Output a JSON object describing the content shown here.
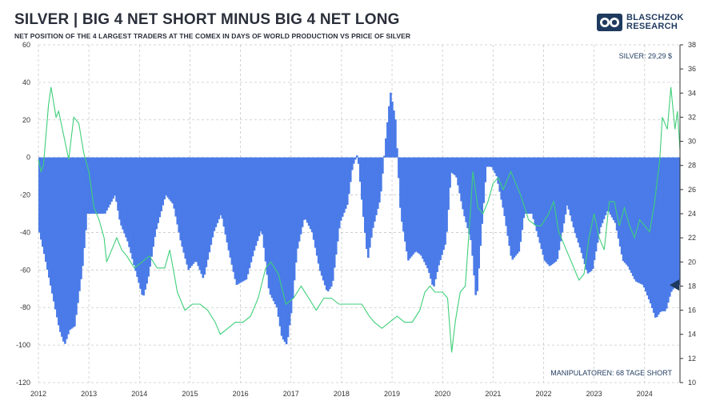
{
  "header": {
    "title": "SILVER | BIG 4 NET SHORT MINUS BIG 4 NET LONG",
    "subtitle": "NET POSITION OF THE 4 LARGEST TRADERS AT THE COMEX IN DAYS OF WORLD PRODUCTION VS PRICE OF SILVER"
  },
  "brand": {
    "line1": "BLASCHZOK",
    "line2": "RESEARCH",
    "icon": "bull-bear-logo-icon"
  },
  "colors": {
    "bars": "#4a7be8",
    "line": "#3fcf7a",
    "grid": "#c8c8c8",
    "marker": "#1f3a5f",
    "text": "#2a2f3a"
  },
  "chart_data": {
    "type": "bar",
    "title": "SILVER | BIG 4 NET SHORT MINUS BIG 4 NET LONG",
    "subtitle": "NET POSITION OF THE 4 LARGEST TRADERS AT THE COMEX IN DAYS OF WORLD PRODUCTION VS PRICE OF SILVER",
    "x_range": [
      2012.0,
      2024.7
    ],
    "x_ticks": [
      "2012",
      "2013",
      "2014",
      "2015",
      "2016",
      "2017",
      "2018",
      "2019",
      "2020",
      "2021",
      "2022",
      "2023",
      "2024"
    ],
    "y_left": {
      "range": [
        -120,
        60
      ],
      "ticks": [
        "60",
        "40",
        "20",
        "0",
        "-20",
        "-40",
        "-60",
        "-80",
        "-100",
        "-120"
      ]
    },
    "y_right": {
      "range": [
        10,
        38
      ],
      "ticks": [
        "38",
        "36",
        "34",
        "32",
        "30",
        "28",
        "26",
        "24",
        "22",
        "20",
        "18",
        "16",
        "14",
        "12",
        "10"
      ]
    },
    "grid": true,
    "series": [
      {
        "kind": "bar",
        "axis": "left",
        "points": [
          [
            2012.0,
            -40
          ],
          [
            2012.1,
            -52
          ],
          [
            2012.25,
            -72
          ],
          [
            2012.4,
            -92
          ],
          [
            2012.5,
            -100
          ],
          [
            2012.6,
            -92
          ],
          [
            2012.7,
            -90
          ],
          [
            2012.85,
            -60
          ],
          [
            2012.95,
            -30
          ],
          [
            2013.1,
            -30
          ],
          [
            2013.3,
            -30
          ],
          [
            2013.5,
            -20
          ],
          [
            2013.6,
            -35
          ],
          [
            2013.75,
            -45
          ],
          [
            2013.9,
            -60
          ],
          [
            2014.05,
            -75
          ],
          [
            2014.15,
            -65
          ],
          [
            2014.3,
            -40
          ],
          [
            2014.5,
            -20
          ],
          [
            2014.65,
            -25
          ],
          [
            2014.8,
            -45
          ],
          [
            2014.95,
            -60
          ],
          [
            2015.1,
            -55
          ],
          [
            2015.25,
            -65
          ],
          [
            2015.45,
            -40
          ],
          [
            2015.6,
            -30
          ],
          [
            2015.75,
            -50
          ],
          [
            2015.9,
            -68
          ],
          [
            2016.1,
            -65
          ],
          [
            2016.25,
            -50
          ],
          [
            2016.4,
            -38
          ],
          [
            2016.55,
            -72
          ],
          [
            2016.7,
            -80
          ],
          [
            2016.8,
            -96
          ],
          [
            2016.9,
            -100
          ],
          [
            2017.0,
            -80
          ],
          [
            2017.1,
            -50
          ],
          [
            2017.25,
            -32
          ],
          [
            2017.4,
            -40
          ],
          [
            2017.55,
            -60
          ],
          [
            2017.7,
            -72
          ],
          [
            2017.8,
            -68
          ],
          [
            2017.95,
            -35
          ],
          [
            2018.1,
            -25
          ],
          [
            2018.2,
            -5
          ],
          [
            2018.3,
            2
          ],
          [
            2018.4,
            -28
          ],
          [
            2018.5,
            -55
          ],
          [
            2018.6,
            -38
          ],
          [
            2018.75,
            -22
          ],
          [
            2018.85,
            8
          ],
          [
            2018.95,
            35
          ],
          [
            2019.05,
            20
          ],
          [
            2019.15,
            -30
          ],
          [
            2019.3,
            -55
          ],
          [
            2019.45,
            -50
          ],
          [
            2019.55,
            -52
          ],
          [
            2019.7,
            -60
          ],
          [
            2019.8,
            -70
          ],
          [
            2019.9,
            -58
          ],
          [
            2020.05,
            -45
          ],
          [
            2020.15,
            -8
          ],
          [
            2020.25,
            -10
          ],
          [
            2020.4,
            -30
          ],
          [
            2020.55,
            -45
          ],
          [
            2020.65,
            -78
          ],
          [
            2020.75,
            -40
          ],
          [
            2020.85,
            -5
          ],
          [
            2020.95,
            -5
          ],
          [
            2021.05,
            -10
          ],
          [
            2021.2,
            -30
          ],
          [
            2021.35,
            -55
          ],
          [
            2021.5,
            -50
          ],
          [
            2021.6,
            -30
          ],
          [
            2021.75,
            -30
          ],
          [
            2021.9,
            -45
          ],
          [
            2022.0,
            -55
          ],
          [
            2022.1,
            -58
          ],
          [
            2022.25,
            -55
          ],
          [
            2022.45,
            -25
          ],
          [
            2022.6,
            -40
          ],
          [
            2022.7,
            -48
          ],
          [
            2022.85,
            -62
          ],
          [
            2022.95,
            -60
          ],
          [
            2023.1,
            -38
          ],
          [
            2023.25,
            -28
          ],
          [
            2023.4,
            -35
          ],
          [
            2023.55,
            -55
          ],
          [
            2023.65,
            -58
          ],
          [
            2023.8,
            -66
          ],
          [
            2023.95,
            -68
          ],
          [
            2024.1,
            -78
          ],
          [
            2024.2,
            -86
          ],
          [
            2024.3,
            -82
          ],
          [
            2024.4,
            -82
          ],
          [
            2024.5,
            -72
          ],
          [
            2024.6,
            -68
          ],
          [
            2024.7,
            -68
          ]
        ]
      },
      {
        "kind": "line",
        "axis": "right",
        "points": [
          [
            2012.0,
            28.5
          ],
          [
            2012.05,
            27.5
          ],
          [
            2012.1,
            28.0
          ],
          [
            2012.2,
            33.0
          ],
          [
            2012.25,
            34.5
          ],
          [
            2012.35,
            32.0
          ],
          [
            2012.4,
            32.5
          ],
          [
            2012.5,
            30.5
          ],
          [
            2012.6,
            28.5
          ],
          [
            2012.7,
            32.0
          ],
          [
            2012.8,
            31.5
          ],
          [
            2012.9,
            29.0
          ],
          [
            2013.0,
            27.5
          ],
          [
            2013.1,
            24.5
          ],
          [
            2013.2,
            23.5
          ],
          [
            2013.3,
            22.0
          ],
          [
            2013.35,
            20.0
          ],
          [
            2013.45,
            21.0
          ],
          [
            2013.55,
            22.0
          ],
          [
            2013.65,
            21.0
          ],
          [
            2013.75,
            20.5
          ],
          [
            2013.9,
            19.5
          ],
          [
            2014.05,
            20.0
          ],
          [
            2014.2,
            20.5
          ],
          [
            2014.35,
            19.5
          ],
          [
            2014.5,
            19.5
          ],
          [
            2014.6,
            21.0
          ],
          [
            2014.75,
            17.5
          ],
          [
            2014.9,
            16.0
          ],
          [
            2015.05,
            16.5
          ],
          [
            2015.2,
            16.5
          ],
          [
            2015.35,
            16.0
          ],
          [
            2015.5,
            15.0
          ],
          [
            2015.6,
            14.0
          ],
          [
            2015.75,
            14.5
          ],
          [
            2015.9,
            15.0
          ],
          [
            2016.05,
            15.0
          ],
          [
            2016.2,
            15.5
          ],
          [
            2016.35,
            17.0
          ],
          [
            2016.5,
            19.5
          ],
          [
            2016.6,
            20.0
          ],
          [
            2016.75,
            19.0
          ],
          [
            2016.9,
            16.5
          ],
          [
            2017.05,
            17.0
          ],
          [
            2017.2,
            18.0
          ],
          [
            2017.35,
            17.0
          ],
          [
            2017.5,
            16.0
          ],
          [
            2017.65,
            17.0
          ],
          [
            2017.8,
            17.0
          ],
          [
            2017.95,
            16.5
          ],
          [
            2018.1,
            16.5
          ],
          [
            2018.25,
            16.5
          ],
          [
            2018.4,
            16.5
          ],
          [
            2018.55,
            15.5
          ],
          [
            2018.65,
            15.0
          ],
          [
            2018.8,
            14.5
          ],
          [
            2018.95,
            15.0
          ],
          [
            2019.1,
            15.5
          ],
          [
            2019.25,
            15.0
          ],
          [
            2019.4,
            15.0
          ],
          [
            2019.55,
            16.0
          ],
          [
            2019.65,
            17.5
          ],
          [
            2019.75,
            18.0
          ],
          [
            2019.85,
            17.5
          ],
          [
            2020.0,
            17.5
          ],
          [
            2020.1,
            17.0
          ],
          [
            2020.18,
            12.5
          ],
          [
            2020.25,
            15.0
          ],
          [
            2020.35,
            17.5
          ],
          [
            2020.45,
            18.0
          ],
          [
            2020.55,
            24.0
          ],
          [
            2020.6,
            27.5
          ],
          [
            2020.7,
            24.5
          ],
          [
            2020.8,
            24.0
          ],
          [
            2020.9,
            25.0
          ],
          [
            2021.0,
            26.5
          ],
          [
            2021.1,
            27.0
          ],
          [
            2021.2,
            26.0
          ],
          [
            2021.35,
            27.5
          ],
          [
            2021.45,
            26.5
          ],
          [
            2021.55,
            25.5
          ],
          [
            2021.7,
            23.5
          ],
          [
            2021.85,
            23.0
          ],
          [
            2021.95,
            23.0
          ],
          [
            2022.1,
            24.0
          ],
          [
            2022.2,
            25.0
          ],
          [
            2022.3,
            22.5
          ],
          [
            2022.45,
            21.0
          ],
          [
            2022.6,
            19.5
          ],
          [
            2022.7,
            18.5
          ],
          [
            2022.8,
            19.0
          ],
          [
            2022.9,
            22.0
          ],
          [
            2023.0,
            24.0
          ],
          [
            2023.1,
            22.0
          ],
          [
            2023.2,
            21.0
          ],
          [
            2023.3,
            25.0
          ],
          [
            2023.4,
            25.0
          ],
          [
            2023.5,
            23.0
          ],
          [
            2023.6,
            24.5
          ],
          [
            2023.7,
            23.0
          ],
          [
            2023.8,
            22.0
          ],
          [
            2023.9,
            23.5
          ],
          [
            2024.0,
            23.0
          ],
          [
            2024.1,
            22.5
          ],
          [
            2024.2,
            25.0
          ],
          [
            2024.3,
            28.5
          ],
          [
            2024.35,
            32.0
          ],
          [
            2024.45,
            31.0
          ],
          [
            2024.52,
            34.5
          ],
          [
            2024.6,
            31.0
          ],
          [
            2024.65,
            32.5
          ],
          [
            2024.7,
            29.3
          ]
        ]
      }
    ],
    "annotations": [
      {
        "text": "SILVER: 29,29 $",
        "position": "top-right"
      },
      {
        "text": "MANIPULATOREN: 68 TAGE SHORT",
        "position": "bottom-right"
      }
    ],
    "current_marker": {
      "axis": "left",
      "value": -68
    }
  }
}
